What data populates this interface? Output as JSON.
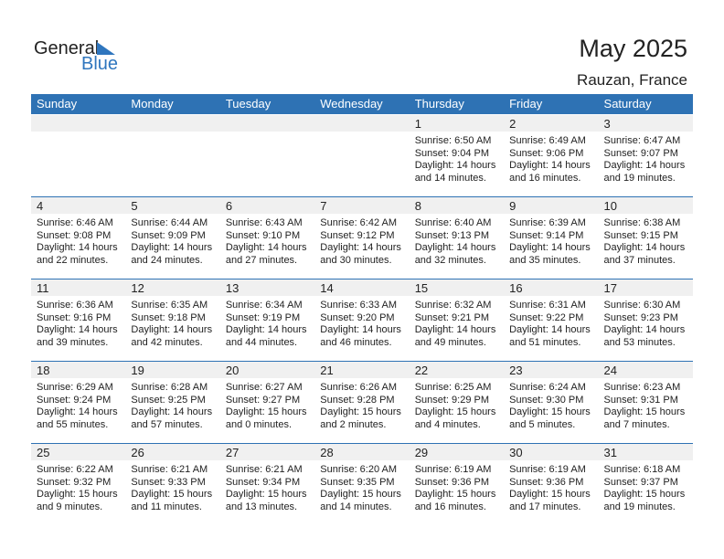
{
  "logo": {
    "general": "General",
    "blue": "Blue"
  },
  "title": "May 2025",
  "location": "Rauzan, France",
  "colors": {
    "header": "#2e72b4",
    "band": "#f0f0f0",
    "logo_blue": "#2f76be"
  },
  "weekdays": [
    "Sunday",
    "Monday",
    "Tuesday",
    "Wednesday",
    "Thursday",
    "Friday",
    "Saturday"
  ],
  "weeks": [
    [
      null,
      null,
      null,
      null,
      {
        "day": "1",
        "sunrise": "Sunrise: 6:50 AM",
        "sunset": "Sunset: 9:04 PM",
        "daylight1": "Daylight: 14 hours",
        "daylight2": "and 14 minutes."
      },
      {
        "day": "2",
        "sunrise": "Sunrise: 6:49 AM",
        "sunset": "Sunset: 9:06 PM",
        "daylight1": "Daylight: 14 hours",
        "daylight2": "and 16 minutes."
      },
      {
        "day": "3",
        "sunrise": "Sunrise: 6:47 AM",
        "sunset": "Sunset: 9:07 PM",
        "daylight1": "Daylight: 14 hours",
        "daylight2": "and 19 minutes."
      }
    ],
    [
      {
        "day": "4",
        "sunrise": "Sunrise: 6:46 AM",
        "sunset": "Sunset: 9:08 PM",
        "daylight1": "Daylight: 14 hours",
        "daylight2": "and 22 minutes."
      },
      {
        "day": "5",
        "sunrise": "Sunrise: 6:44 AM",
        "sunset": "Sunset: 9:09 PM",
        "daylight1": "Daylight: 14 hours",
        "daylight2": "and 24 minutes."
      },
      {
        "day": "6",
        "sunrise": "Sunrise: 6:43 AM",
        "sunset": "Sunset: 9:10 PM",
        "daylight1": "Daylight: 14 hours",
        "daylight2": "and 27 minutes."
      },
      {
        "day": "7",
        "sunrise": "Sunrise: 6:42 AM",
        "sunset": "Sunset: 9:12 PM",
        "daylight1": "Daylight: 14 hours",
        "daylight2": "and 30 minutes."
      },
      {
        "day": "8",
        "sunrise": "Sunrise: 6:40 AM",
        "sunset": "Sunset: 9:13 PM",
        "daylight1": "Daylight: 14 hours",
        "daylight2": "and 32 minutes."
      },
      {
        "day": "9",
        "sunrise": "Sunrise: 6:39 AM",
        "sunset": "Sunset: 9:14 PM",
        "daylight1": "Daylight: 14 hours",
        "daylight2": "and 35 minutes."
      },
      {
        "day": "10",
        "sunrise": "Sunrise: 6:38 AM",
        "sunset": "Sunset: 9:15 PM",
        "daylight1": "Daylight: 14 hours",
        "daylight2": "and 37 minutes."
      }
    ],
    [
      {
        "day": "11",
        "sunrise": "Sunrise: 6:36 AM",
        "sunset": "Sunset: 9:16 PM",
        "daylight1": "Daylight: 14 hours",
        "daylight2": "and 39 minutes."
      },
      {
        "day": "12",
        "sunrise": "Sunrise: 6:35 AM",
        "sunset": "Sunset: 9:18 PM",
        "daylight1": "Daylight: 14 hours",
        "daylight2": "and 42 minutes."
      },
      {
        "day": "13",
        "sunrise": "Sunrise: 6:34 AM",
        "sunset": "Sunset: 9:19 PM",
        "daylight1": "Daylight: 14 hours",
        "daylight2": "and 44 minutes."
      },
      {
        "day": "14",
        "sunrise": "Sunrise: 6:33 AM",
        "sunset": "Sunset: 9:20 PM",
        "daylight1": "Daylight: 14 hours",
        "daylight2": "and 46 minutes."
      },
      {
        "day": "15",
        "sunrise": "Sunrise: 6:32 AM",
        "sunset": "Sunset: 9:21 PM",
        "daylight1": "Daylight: 14 hours",
        "daylight2": "and 49 minutes."
      },
      {
        "day": "16",
        "sunrise": "Sunrise: 6:31 AM",
        "sunset": "Sunset: 9:22 PM",
        "daylight1": "Daylight: 14 hours",
        "daylight2": "and 51 minutes."
      },
      {
        "day": "17",
        "sunrise": "Sunrise: 6:30 AM",
        "sunset": "Sunset: 9:23 PM",
        "daylight1": "Daylight: 14 hours",
        "daylight2": "and 53 minutes."
      }
    ],
    [
      {
        "day": "18",
        "sunrise": "Sunrise: 6:29 AM",
        "sunset": "Sunset: 9:24 PM",
        "daylight1": "Daylight: 14 hours",
        "daylight2": "and 55 minutes."
      },
      {
        "day": "19",
        "sunrise": "Sunrise: 6:28 AM",
        "sunset": "Sunset: 9:25 PM",
        "daylight1": "Daylight: 14 hours",
        "daylight2": "and 57 minutes."
      },
      {
        "day": "20",
        "sunrise": "Sunrise: 6:27 AM",
        "sunset": "Sunset: 9:27 PM",
        "daylight1": "Daylight: 15 hours",
        "daylight2": "and 0 minutes."
      },
      {
        "day": "21",
        "sunrise": "Sunrise: 6:26 AM",
        "sunset": "Sunset: 9:28 PM",
        "daylight1": "Daylight: 15 hours",
        "daylight2": "and 2 minutes."
      },
      {
        "day": "22",
        "sunrise": "Sunrise: 6:25 AM",
        "sunset": "Sunset: 9:29 PM",
        "daylight1": "Daylight: 15 hours",
        "daylight2": "and 4 minutes."
      },
      {
        "day": "23",
        "sunrise": "Sunrise: 6:24 AM",
        "sunset": "Sunset: 9:30 PM",
        "daylight1": "Daylight: 15 hours",
        "daylight2": "and 5 minutes."
      },
      {
        "day": "24",
        "sunrise": "Sunrise: 6:23 AM",
        "sunset": "Sunset: 9:31 PM",
        "daylight1": "Daylight: 15 hours",
        "daylight2": "and 7 minutes."
      }
    ],
    [
      {
        "day": "25",
        "sunrise": "Sunrise: 6:22 AM",
        "sunset": "Sunset: 9:32 PM",
        "daylight1": "Daylight: 15 hours",
        "daylight2": "and 9 minutes."
      },
      {
        "day": "26",
        "sunrise": "Sunrise: 6:21 AM",
        "sunset": "Sunset: 9:33 PM",
        "daylight1": "Daylight: 15 hours",
        "daylight2": "and 11 minutes."
      },
      {
        "day": "27",
        "sunrise": "Sunrise: 6:21 AM",
        "sunset": "Sunset: 9:34 PM",
        "daylight1": "Daylight: 15 hours",
        "daylight2": "and 13 minutes."
      },
      {
        "day": "28",
        "sunrise": "Sunrise: 6:20 AM",
        "sunset": "Sunset: 9:35 PM",
        "daylight1": "Daylight: 15 hours",
        "daylight2": "and 14 minutes."
      },
      {
        "day": "29",
        "sunrise": "Sunrise: 6:19 AM",
        "sunset": "Sunset: 9:36 PM",
        "daylight1": "Daylight: 15 hours",
        "daylight2": "and 16 minutes."
      },
      {
        "day": "30",
        "sunrise": "Sunrise: 6:19 AM",
        "sunset": "Sunset: 9:36 PM",
        "daylight1": "Daylight: 15 hours",
        "daylight2": "and 17 minutes."
      },
      {
        "day": "31",
        "sunrise": "Sunrise: 6:18 AM",
        "sunset": "Sunset: 9:37 PM",
        "daylight1": "Daylight: 15 hours",
        "daylight2": "and 19 minutes."
      }
    ]
  ]
}
